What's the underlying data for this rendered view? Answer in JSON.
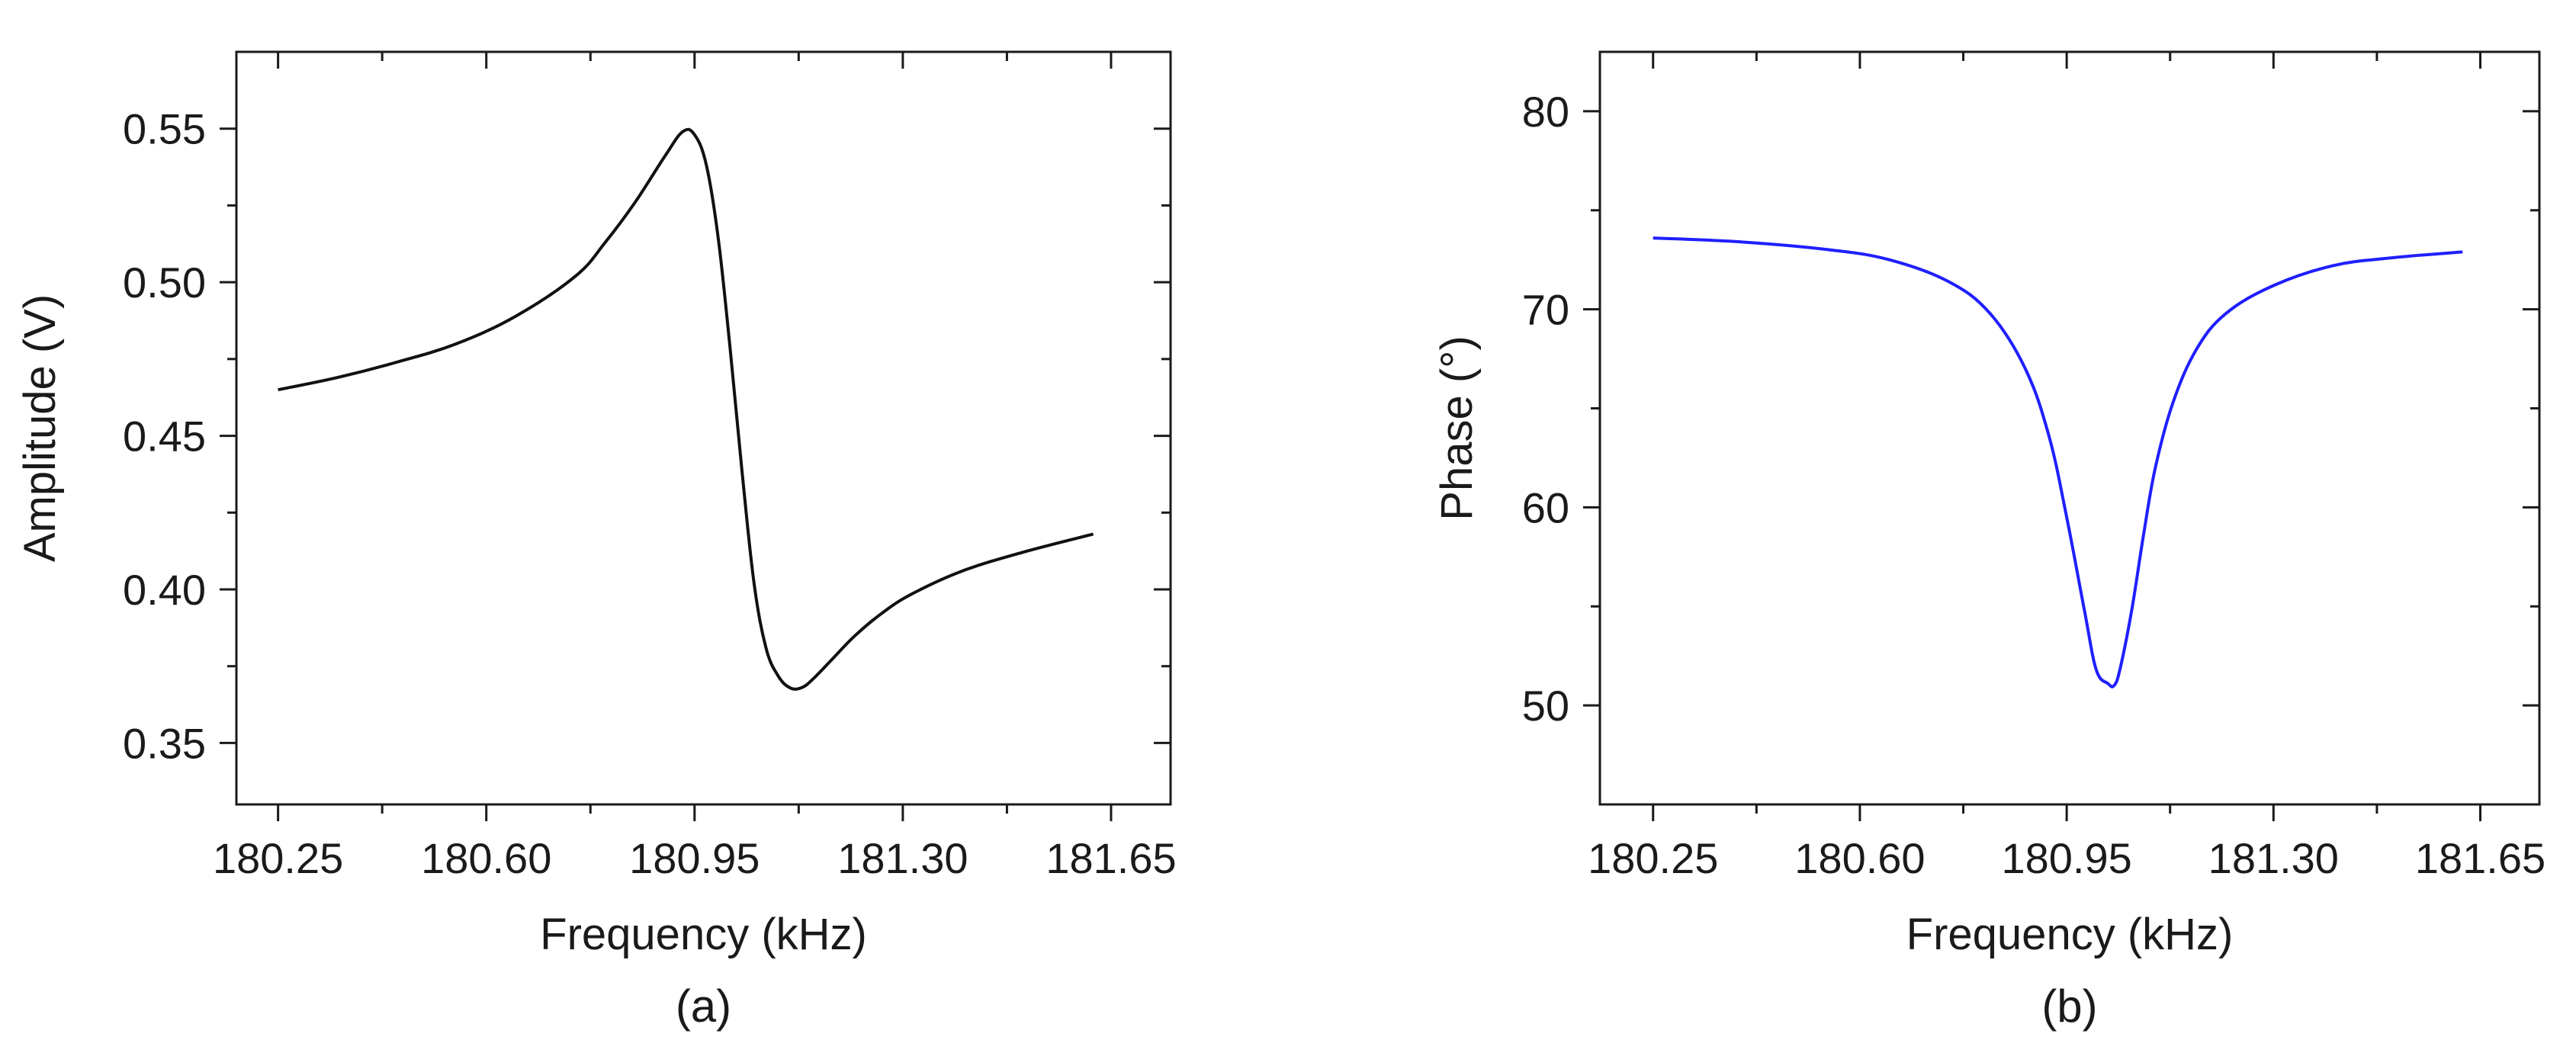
{
  "chart_data": [
    {
      "type": "line",
      "panel_label": "(a)",
      "xlabel": "Frequency (kHz)",
      "ylabel": "Amplitude (V)",
      "xlim": [
        180.18,
        181.75
      ],
      "ylim": [
        0.33,
        0.575
      ],
      "xticks": [
        180.25,
        180.6,
        180.95,
        181.3,
        181.65
      ],
      "xtick_labels": [
        "180.25",
        "180.60",
        "180.95",
        "181.30",
        "181.65"
      ],
      "xminor": [
        180.425,
        180.775,
        181.125,
        181.475
      ],
      "yticks": [
        0.35,
        0.4,
        0.45,
        0.5,
        0.55
      ],
      "ytick_labels": [
        "0.35",
        "0.40",
        "0.45",
        "0.50",
        "0.55"
      ],
      "yminor": [
        0.375,
        0.425,
        0.475,
        0.525
      ],
      "color": "#111111",
      "series": [
        {
          "name": "Amplitude",
          "x": [
            180.25,
            180.35,
            180.45,
            180.55,
            180.65,
            180.75,
            180.8,
            180.85,
            180.9,
            180.93,
            180.95,
            180.97,
            180.99,
            181.01,
            181.03,
            181.05,
            181.07,
            181.09,
            181.11,
            181.13,
            181.15,
            181.18,
            181.22,
            181.27,
            181.32,
            181.4,
            181.5,
            181.62
          ],
          "y": [
            0.465,
            0.469,
            0.474,
            0.48,
            0.489,
            0.502,
            0.513,
            0.526,
            0.541,
            0.549,
            0.548,
            0.538,
            0.514,
            0.478,
            0.438,
            0.402,
            0.381,
            0.372,
            0.368,
            0.368,
            0.371,
            0.377,
            0.385,
            0.393,
            0.399,
            0.406,
            0.412,
            0.418
          ]
        }
      ]
    },
    {
      "type": "line",
      "panel_label": "(b)",
      "xlabel": "Frequency (kHz)",
      "ylabel": "Phase (°)",
      "xlim": [
        180.16,
        181.75
      ],
      "ylim": [
        45,
        83
      ],
      "xticks": [
        180.25,
        180.6,
        180.95,
        181.3,
        181.65
      ],
      "xtick_labels": [
        "180.25",
        "180.60",
        "180.95",
        "181.30",
        "181.65"
      ],
      "xminor": [
        180.425,
        180.775,
        181.125,
        181.475
      ],
      "yticks": [
        50,
        60,
        70,
        80
      ],
      "ytick_labels": [
        "50",
        "60",
        "70",
        "80"
      ],
      "yminor": [
        55,
        65,
        75
      ],
      "color": "#1f1fff",
      "series": [
        {
          "name": "Phase",
          "x": [
            180.25,
            180.4,
            180.55,
            180.65,
            180.75,
            180.82,
            180.88,
            180.92,
            180.95,
            180.98,
            181.0,
            181.02,
            181.03,
            181.04,
            181.06,
            181.08,
            181.1,
            181.13,
            181.17,
            181.22,
            181.3,
            181.4,
            181.5,
            181.62
          ],
          "y": [
            73.6,
            73.4,
            73.0,
            72.5,
            71.4,
            69.8,
            67.0,
            63.6,
            59.5,
            54.8,
            51.8,
            51.1,
            51.0,
            51.8,
            54.8,
            58.6,
            62.0,
            65.3,
            68.0,
            69.8,
            71.2,
            72.2,
            72.6,
            72.9
          ]
        }
      ]
    }
  ]
}
